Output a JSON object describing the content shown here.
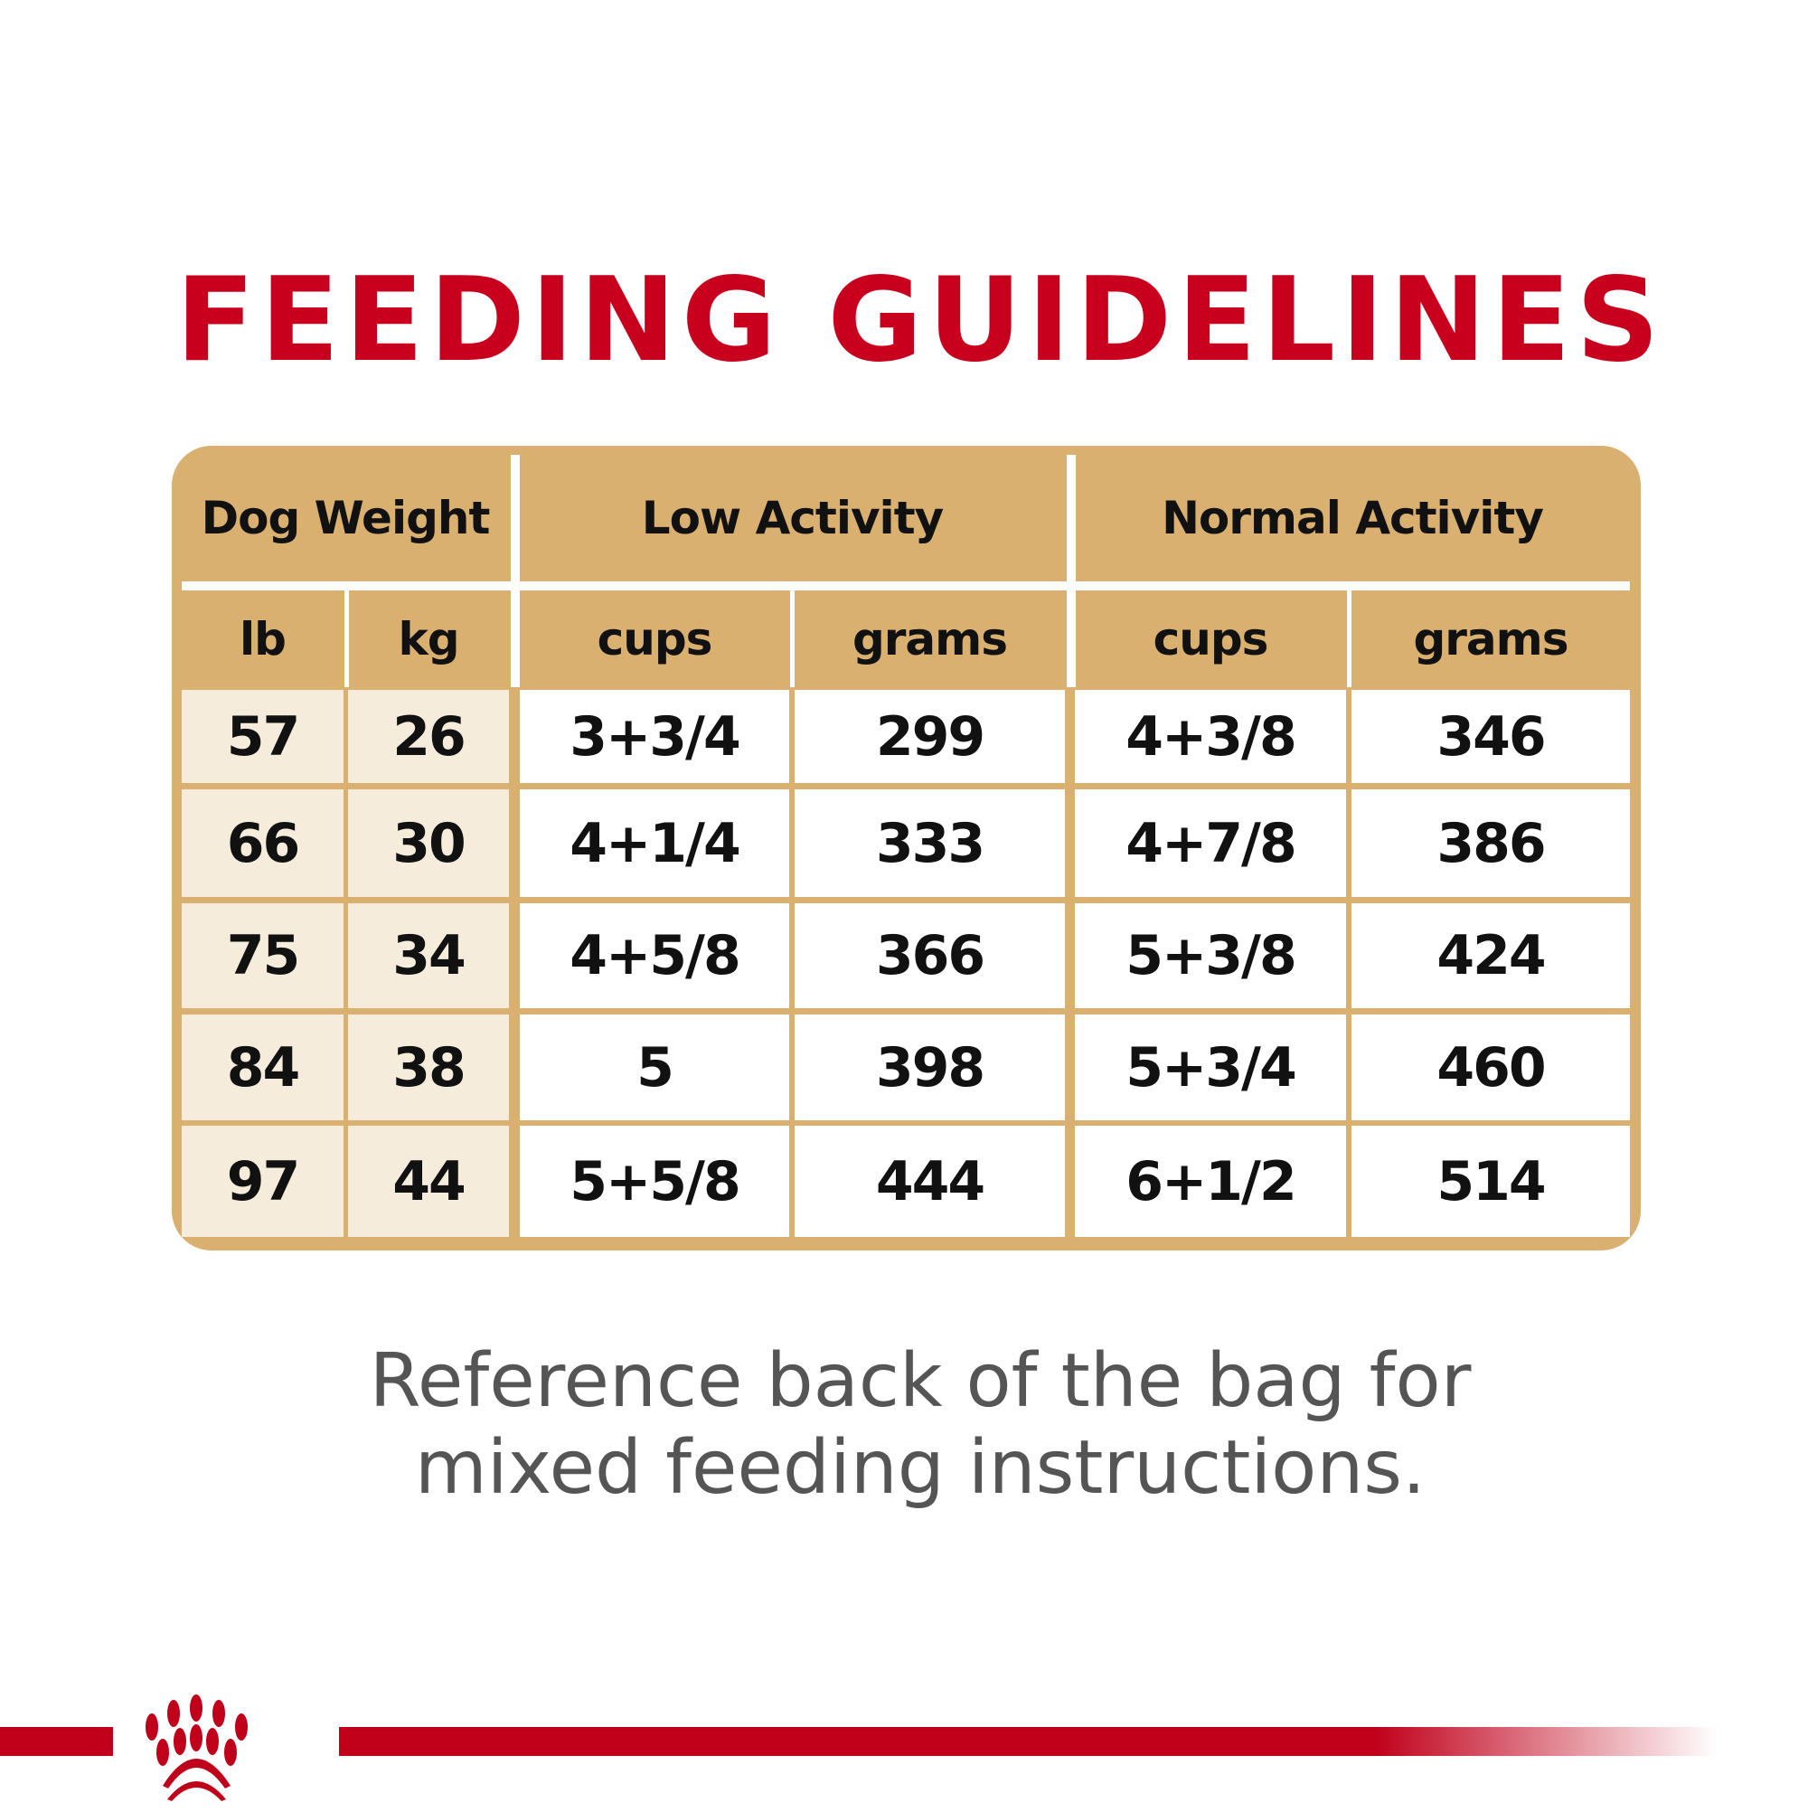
{
  "title": "FEEDING GUIDELINES",
  "table": {
    "group_headers": [
      "Dog Weight",
      "Low Activity",
      "Normal Activity"
    ],
    "sub_headers": [
      "lb",
      "kg",
      "cups",
      "grams",
      "cups",
      "grams"
    ],
    "rows": [
      [
        "57",
        "26",
        "3+3/4",
        "299",
        "4+3/8",
        "346"
      ],
      [
        "66",
        "30",
        "4+1/4",
        "333",
        "4+7/8",
        "386"
      ],
      [
        "75",
        "34",
        "4+5/8",
        "366",
        "5+3/8",
        "424"
      ],
      [
        "84",
        "38",
        "5",
        "398",
        "5+3/4",
        "460"
      ],
      [
        "97",
        "44",
        "5+5/8",
        "444",
        "6+1/2",
        "514"
      ]
    ]
  },
  "note": [
    "Reference back of the bag for",
    "mixed feeding instructions."
  ],
  "logo": {
    "icon": "crown-icon",
    "brand_color": "#c0001a"
  },
  "colors": {
    "title": "#c8001e",
    "header": "#d9b070",
    "weight_cells": "#f6ecdc",
    "note": "#555555"
  }
}
